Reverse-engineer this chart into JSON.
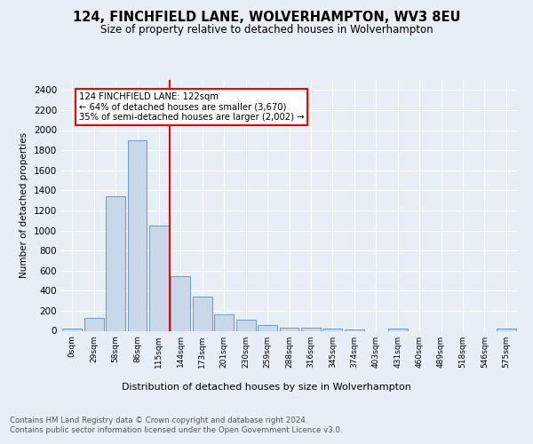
{
  "title1": "124, FINCHFIELD LANE, WOLVERHAMPTON, WV3 8EU",
  "title2": "Size of property relative to detached houses in Wolverhampton",
  "xlabel": "Distribution of detached houses by size in Wolverhampton",
  "ylabel": "Number of detached properties",
  "bin_labels": [
    "0sqm",
    "29sqm",
    "58sqm",
    "86sqm",
    "115sqm",
    "144sqm",
    "173sqm",
    "201sqm",
    "230sqm",
    "259sqm",
    "288sqm",
    "316sqm",
    "345sqm",
    "374sqm",
    "403sqm",
    "431sqm",
    "460sqm",
    "489sqm",
    "518sqm",
    "546sqm",
    "575sqm"
  ],
  "bar_heights": [
    20,
    130,
    1340,
    1900,
    1050,
    540,
    340,
    165,
    110,
    55,
    35,
    30,
    20,
    15,
    0,
    20,
    0,
    0,
    0,
    0,
    20
  ],
  "bar_color": "#c8d8e8",
  "bar_edge_color": "#5a8fc0",
  "vline_x": 4.5,
  "vline_color": "red",
  "annotation_text": "124 FINCHFIELD LANE: 122sqm\n← 64% of detached houses are smaller (3,670)\n35% of semi-detached houses are larger (2,002) →",
  "annotation_box_color": "white",
  "annotation_box_edge_color": "red",
  "ylim": [
    0,
    2500
  ],
  "yticks": [
    0,
    200,
    400,
    600,
    800,
    1000,
    1200,
    1400,
    1600,
    1800,
    2000,
    2200,
    2400
  ],
  "footer_line1": "Contains HM Land Registry data © Crown copyright and database right 2024.",
  "footer_line2": "Contains public sector information licensed under the Open Government Licence v3.0.",
  "bg_color": "#e8eef5",
  "plot_bg_color": "#e8eef5"
}
